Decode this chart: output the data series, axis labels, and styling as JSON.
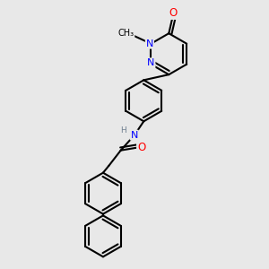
{
  "bg_color": "#e8e8e8",
  "bond_color": "#000000",
  "bond_width": 1.5,
  "atom_colors": {
    "N": "#0000ff",
    "O": "#ff0000",
    "H": "#708090",
    "C": "#000000"
  },
  "font_size": 8.0,
  "fig_width": 3.0,
  "fig_height": 3.0,
  "dpi": 100,
  "xlim": [
    0,
    10
  ],
  "ylim": [
    0,
    10
  ]
}
